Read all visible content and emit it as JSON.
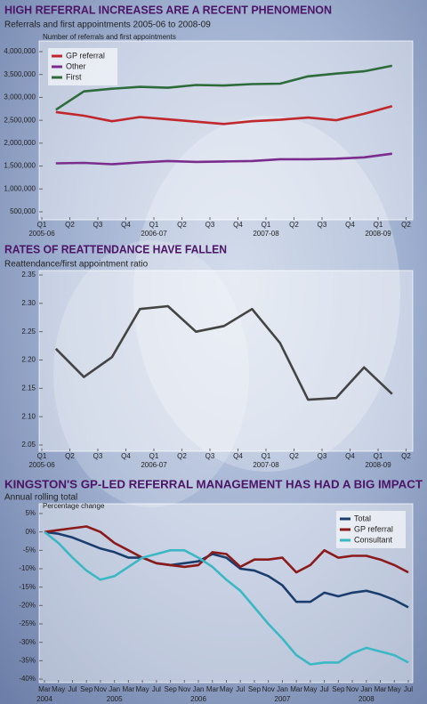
{
  "chart_data": [
    {
      "type": "line",
      "title": "HIGH REFERRAL INCREASES ARE A RECENT PHENOMENON",
      "subtitle": "Referrals and first appointments 2005-06 to 2008-09",
      "ylabel": "Number of referrals and first appointments",
      "categories": [
        "Q1",
        "Q2",
        "Q3",
        "Q4",
        "Q1",
        "Q2",
        "Q3",
        "Q4",
        "Q1",
        "Q2",
        "Q3",
        "Q4",
        "Q1",
        "Q2"
      ],
      "x_group_labels": [
        "2005-06",
        null,
        null,
        null,
        "2006-07",
        null,
        null,
        null,
        "2007-08",
        null,
        null,
        null,
        "2008-09",
        null
      ],
      "series": [
        {
          "name": "GP referral",
          "color": "#c0282d",
          "values": [
            2680000,
            2600000,
            2480000,
            2570000,
            2520000,
            2470000,
            2420000,
            2480000,
            2510000,
            2560000,
            2500000,
            2640000,
            2810000,
            null
          ]
        },
        {
          "name": "Other",
          "color": "#7b2d8e",
          "values": [
            1560000,
            1570000,
            1540000,
            1580000,
            1610000,
            1590000,
            1600000,
            1610000,
            1650000,
            1650000,
            1660000,
            1690000,
            1770000,
            null
          ]
        },
        {
          "name": "First",
          "color": "#2e6b3a",
          "values": [
            2730000,
            3130000,
            3190000,
            3230000,
            3210000,
            3270000,
            3260000,
            3290000,
            3300000,
            3460000,
            3520000,
            3570000,
            3690000,
            null
          ]
        }
      ],
      "ylim": [
        500000,
        4000000
      ],
      "yticks": [
        {
          "value": 500000,
          "label": "500,000"
        },
        {
          "value": 1000000,
          "label": "1,000,000"
        },
        {
          "value": 1500000,
          "label": "1,500,000"
        },
        {
          "value": 2000000,
          "label": "2,000,000"
        },
        {
          "value": 2500000,
          "label": "2,500,000"
        },
        {
          "value": 3000000,
          "label": "3,000,000"
        },
        {
          "value": 3500000,
          "label": "3,500,000"
        },
        {
          "value": 4000000,
          "label": "4,000,000"
        }
      ],
      "legend": "upper left"
    },
    {
      "type": "line",
      "title": "RATES OF REATTENDANCE HAVE FALLEN",
      "subtitle": "Reattendance/first appointment ratio",
      "categories": [
        "Q1",
        "Q2",
        "Q3",
        "Q4",
        "Q1",
        "Q2",
        "Q3",
        "Q4",
        "Q1",
        "Q2",
        "Q3",
        "Q4",
        "Q1",
        "Q2"
      ],
      "x_group_labels": [
        "2005-06",
        null,
        null,
        null,
        "2006-07",
        null,
        null,
        null,
        "2007-08",
        null,
        null,
        null,
        "2008-09",
        null
      ],
      "series": [
        {
          "color": "#444444",
          "values": [
            2.22,
            2.17,
            2.205,
            2.29,
            2.295,
            2.25,
            2.26,
            2.29,
            2.23,
            2.13,
            2.133,
            2.187,
            2.14,
            null
          ]
        }
      ],
      "ylim": [
        2.05,
        2.35
      ],
      "yticks": [
        2.05,
        {
          "value": 2.1,
          "label": "2.10"
        },
        2.15,
        {
          "value": 2.2,
          "label": "2.20"
        },
        2.25,
        {
          "value": 2.3,
          "label": "2.30"
        },
        2.35
      ]
    },
    {
      "type": "line",
      "title": "KINGSTON'S GP-LED REFERRAL MANAGEMENT HAS HAD A BIG IMPACT",
      "subtitle": "Annual rolling total",
      "ylabel": "Percentage change",
      "categories": [
        "Mar",
        "May",
        "Jul",
        "Sep",
        "Nov",
        "Jan",
        "Mar",
        "May",
        "Jul",
        "Sep",
        "Nov",
        "Jan",
        "Mar",
        "May",
        "Jul",
        "Sep",
        "Nov",
        "Jan",
        "Mar",
        "May",
        "Jul",
        "Sep",
        "Nov",
        "Jan",
        "Mar",
        "May",
        "Jul"
      ],
      "x_group_labels": [
        "2004",
        null,
        null,
        null,
        null,
        "2005",
        null,
        null,
        null,
        null,
        null,
        "2006",
        null,
        null,
        null,
        null,
        null,
        "2007",
        null,
        null,
        null,
        null,
        null,
        "2008",
        null,
        null,
        null
      ],
      "series": [
        {
          "name": "Total",
          "color": "#1a3d6e",
          "values": [
            0,
            -0.5,
            -1.5,
            -3,
            -4.5,
            -5.5,
            -7,
            -7,
            -8.5,
            -9,
            -8.5,
            -8,
            -6,
            -7,
            -10,
            -10.5,
            -12,
            -14.5,
            -19,
            -19,
            -16.5,
            -17.5,
            -16.5,
            -16,
            -17,
            -18.5,
            -20.5
          ]
        },
        {
          "name": "GP referral",
          "color": "#8b1a1a",
          "values": [
            0,
            0.5,
            1,
            1.5,
            0,
            -3,
            -5,
            -7,
            -8.5,
            -9,
            -9.5,
            -9,
            -5.5,
            -6,
            -9.5,
            -7.5,
            -7.5,
            -7,
            -11,
            -9,
            -5,
            -7,
            -6.5,
            -6.5,
            -7.5,
            -9,
            -11
          ]
        },
        {
          "name": "Consultant",
          "color": "#3bb8c4",
          "values": [
            0,
            -3,
            -7,
            -10.5,
            -13,
            -12,
            -9.5,
            -7,
            -6,
            -5,
            -5,
            -7,
            -9.5,
            -13,
            -16,
            -20.5,
            -25,
            -29,
            -33.5,
            -36,
            -35.5,
            -35.5,
            -33,
            -31.5,
            -32.5,
            -33.5,
            -35.5
          ]
        }
      ],
      "ylim": [
        -40,
        5
      ],
      "yticks": [
        {
          "value": -40,
          "label": "-40%"
        },
        {
          "value": -35,
          "label": "-35%"
        },
        {
          "value": -30,
          "label": "-30%"
        },
        {
          "value": -25,
          "label": "-25%"
        },
        {
          "value": -20,
          "label": "-20%"
        },
        {
          "value": -15,
          "label": "-15%"
        },
        {
          "value": -10,
          "label": "-10%"
        },
        {
          "value": -5,
          "label": "-5%"
        },
        {
          "value": 0,
          "label": "0%"
        },
        {
          "value": 5,
          "label": "5%"
        }
      ],
      "legend": "upper right"
    }
  ]
}
